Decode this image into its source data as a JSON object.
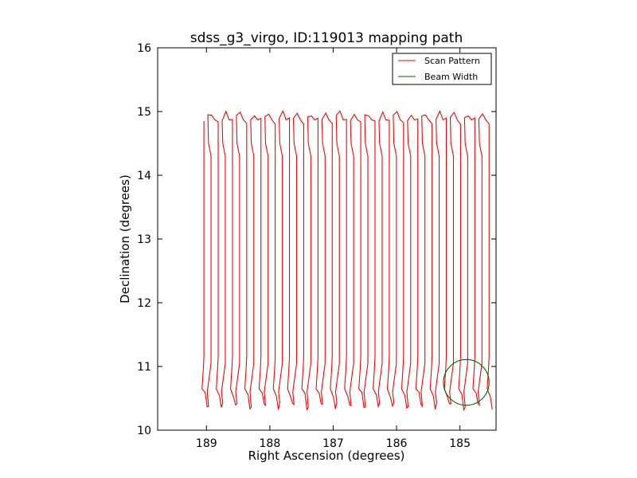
{
  "chart_data": {
    "type": "line",
    "title": "sdss_g3_virgo, ID:119013 mapping path",
    "xlabel": "Right Ascension (degrees)",
    "ylabel": "Declination (degrees)",
    "xlim": [
      189.77,
      184.43
    ],
    "ylim": [
      10,
      16
    ],
    "xticks": [
      189,
      188,
      187,
      186,
      185
    ],
    "xtick_labels": [
      "189",
      "188",
      "187",
      "186",
      "185"
    ],
    "yticks": [
      10,
      11,
      12,
      13,
      14,
      15,
      16
    ],
    "ytick_labels": [
      "10",
      "11",
      "12",
      "13",
      "14",
      "15",
      "16"
    ],
    "grid": false,
    "legend": {
      "placement": "top-right"
    },
    "scan": {
      "name": "Scan Pattern",
      "color": "#ff0000",
      "start_ra": 189.04,
      "ra_step": 0.1125,
      "passes": 41,
      "dec_low": 10.45,
      "dec_high": 14.95
    },
    "beam": {
      "name": "Beam Width",
      "color": "#006400",
      "center_ra": 184.9,
      "center_dec": 10.75,
      "radius_deg": 0.36
    }
  }
}
